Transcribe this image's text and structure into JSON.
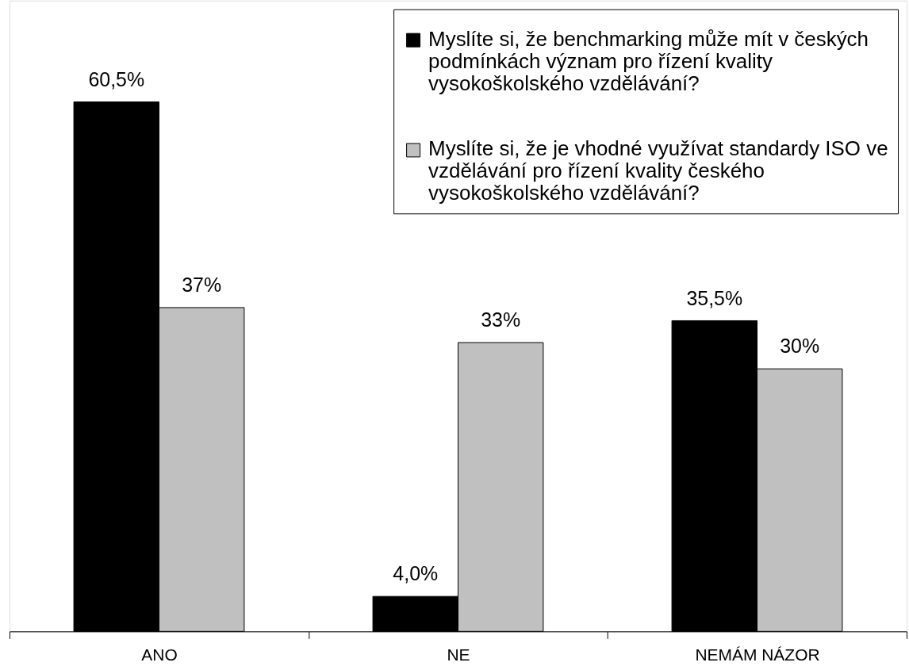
{
  "chart_data": {
    "type": "bar",
    "categories": [
      "ANO",
      "NE",
      "NEMÁM NÁZOR"
    ],
    "series": [
      {
        "name": "Myslíte si, že benchmarking může mít v českých podmínkách význam pro řízení kvality vysokoškolského vzdělávání?",
        "color": "#000000",
        "values": [
          60.5,
          4.0,
          35.5
        ],
        "value_labels": [
          "60,5%",
          "4,0%",
          "35,5%"
        ]
      },
      {
        "name": "Myslíte si, že je vhodné využívat standardy ISO ve vzdělávání pro řízení kvality českého vysokoškolského vzdělávání?",
        "color": "#c0c0c0",
        "values": [
          37,
          33,
          30
        ],
        "value_labels": [
          "37%",
          "33%",
          "30%"
        ]
      }
    ],
    "legend": "top right",
    "tick_labels": "x"
  }
}
